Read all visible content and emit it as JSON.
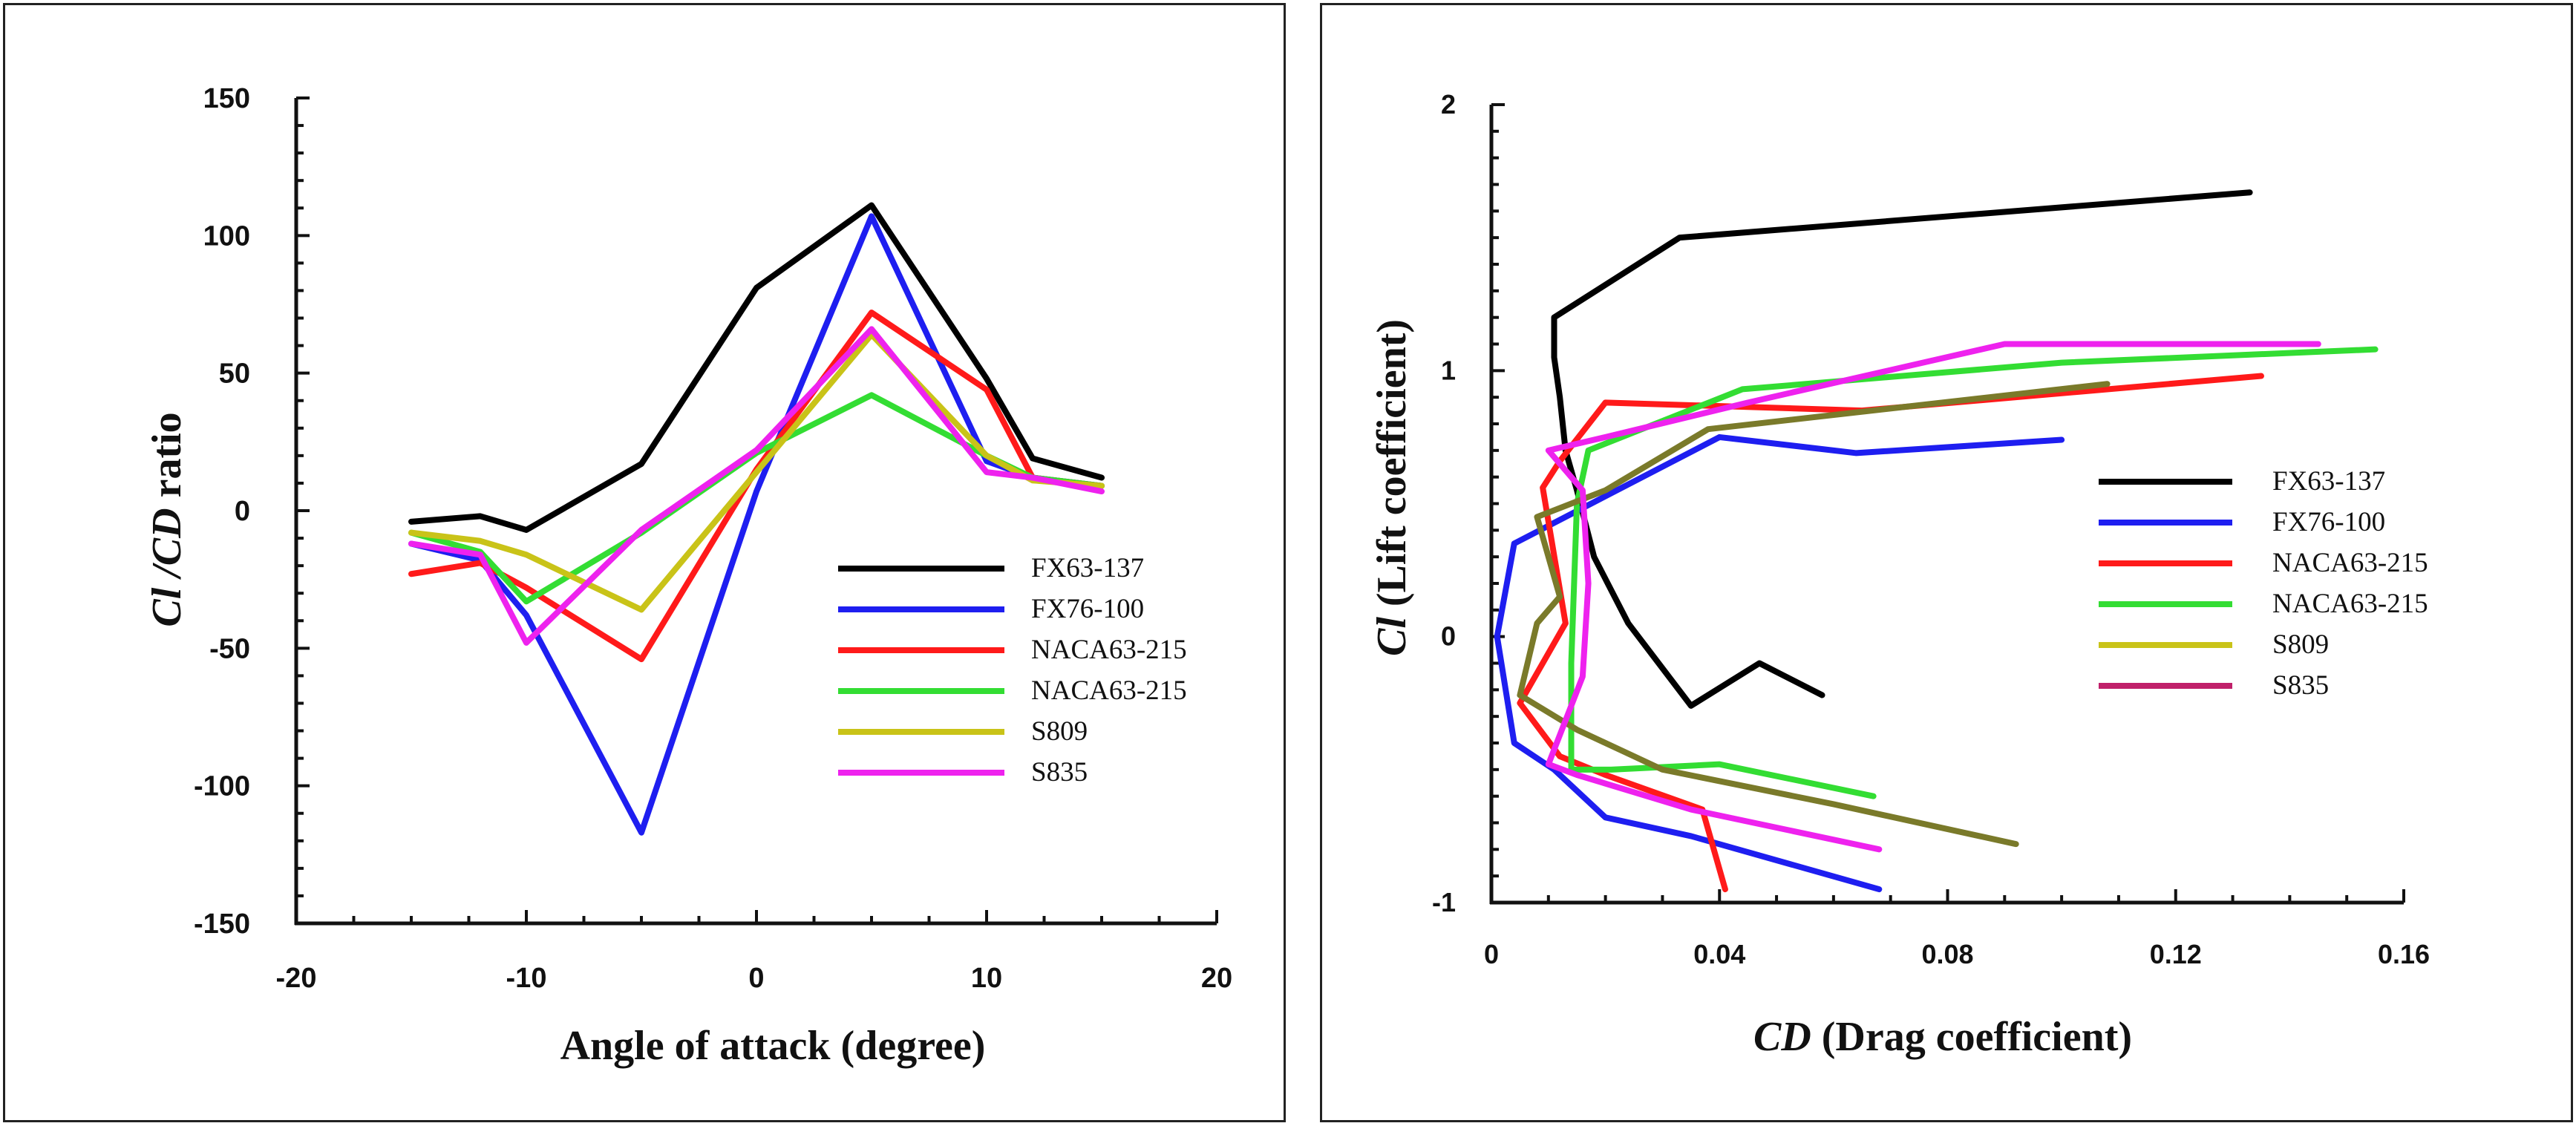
{
  "chart_data": [
    {
      "type": "line",
      "title": "",
      "xlabel": "Angle of attack (degree)",
      "ylabel_italic": "Cl /CD",
      "ylabel_rest": " ratio",
      "xlim": [
        -20,
        20
      ],
      "ylim": [
        -150,
        150
      ],
      "xticks": [
        -20,
        -10,
        0,
        10,
        20
      ],
      "yticks": [
        -150,
        -100,
        -50,
        0,
        50,
        100,
        150
      ],
      "legend_position": "center-right",
      "series": [
        {
          "name": "FX63-137",
          "color": "#000000",
          "x": [
            -15,
            -12,
            -10,
            -5,
            0,
            5,
            10,
            12,
            15
          ],
          "y": [
            -4,
            -2,
            -7,
            17,
            81,
            111,
            48,
            19,
            12
          ]
        },
        {
          "name": "FX76-100",
          "color": "#1e1ef0",
          "x": [
            -15,
            -12,
            -10,
            -5,
            0,
            5,
            10,
            12,
            15
          ],
          "y": [
            -12,
            -18,
            -38,
            -117,
            7,
            107,
            18,
            12,
            9
          ]
        },
        {
          "name": "NACA63-215",
          "color": "#ff1a1a",
          "x": [
            -15,
            -12,
            -10,
            -5,
            0,
            5,
            10,
            12,
            15
          ],
          "y": [
            -23,
            -19,
            -28,
            -54,
            15,
            72,
            44,
            12,
            9
          ]
        },
        {
          "name": "NACA63-215",
          "color": "#33dd33",
          "x": [
            -15,
            -12,
            -10,
            -5,
            0,
            5,
            10,
            12,
            15
          ],
          "y": [
            -8,
            -15,
            -33,
            -8,
            21,
            42,
            20,
            12,
            9
          ]
        },
        {
          "name": "S809",
          "color": "#c9c318",
          "x": [
            -15,
            -12,
            -10,
            -5,
            0,
            5,
            10,
            12,
            15
          ],
          "y": [
            -8,
            -11,
            -16,
            -36,
            14,
            64,
            20,
            11,
            9
          ]
        },
        {
          "name": "S835",
          "color": "#ee22ee",
          "x": [
            -15,
            -12,
            -10,
            -5,
            0,
            5,
            10,
            12,
            15
          ],
          "y": [
            -12,
            -16,
            -48,
            -7,
            22,
            66,
            14,
            12,
            7
          ]
        }
      ]
    },
    {
      "type": "line",
      "title": "",
      "xlabel_italic": "CD",
      "xlabel_rest": " (Drag coefficient)",
      "ylabel_italic": "Cl",
      "ylabel_rest": " (Lift coefficient)",
      "xlim": [
        0,
        0.16
      ],
      "ylim": [
        -1,
        2
      ],
      "xticks": [
        "0",
        "0.04",
        "0.08",
        "0.12",
        "0.16"
      ],
      "yticks": [
        "-1",
        "0",
        "1",
        "2"
      ],
      "legend_position": "center-right",
      "series": [
        {
          "name": "FX63-137",
          "color": "#000000",
          "x": [
            0.058,
            0.047,
            0.035,
            0.024,
            0.018,
            0.015,
            0.013,
            0.012,
            0.011,
            0.011,
            0.033,
            0.133
          ],
          "y": [
            -0.22,
            -0.1,
            -0.26,
            0.05,
            0.3,
            0.55,
            0.7,
            0.9,
            1.05,
            1.2,
            1.5,
            1.67
          ]
        },
        {
          "name": "FX76-100",
          "color": "#1e1ef0",
          "x": [
            0.068,
            0.035,
            0.02,
            0.011,
            0.004,
            0.001,
            0.004,
            0.013,
            0.04,
            0.064,
            0.1
          ],
          "y": [
            -0.95,
            -0.75,
            -0.68,
            -0.5,
            -0.4,
            0.0,
            0.35,
            0.45,
            0.75,
            0.69,
            0.74
          ]
        },
        {
          "name": "NACA63-215",
          "color": "#ff1a1a",
          "x": [
            0.041,
            0.037,
            0.02,
            0.012,
            0.005,
            0.009,
            0.013,
            0.009,
            0.012,
            0.02,
            0.065,
            0.135
          ],
          "y": [
            -0.95,
            -0.65,
            -0.52,
            -0.45,
            -0.25,
            -0.1,
            0.05,
            0.56,
            0.66,
            0.88,
            0.85,
            0.98
          ]
        },
        {
          "name": "NACA63-215",
          "color": "#33dd33",
          "x": [
            0.067,
            0.04,
            0.021,
            0.014,
            0.014,
            0.015,
            0.017,
            0.044,
            0.1,
            0.155
          ],
          "y": [
            -0.6,
            -0.48,
            -0.5,
            -0.5,
            -0.1,
            0.5,
            0.7,
            0.93,
            1.03,
            1.08
          ]
        },
        {
          "name": "S809",
          "color": "#7a7a2a",
          "x": [
            0.092,
            0.06,
            0.03,
            0.015,
            0.005,
            0.008,
            0.012,
            0.008,
            0.02,
            0.038,
            0.108
          ],
          "y": [
            -0.78,
            -0.63,
            -0.5,
            -0.35,
            -0.22,
            0.05,
            0.15,
            0.45,
            0.55,
            0.78,
            0.95
          ]
        },
        {
          "name": "S835",
          "color": "#ee22ee",
          "x": [
            0.068,
            0.035,
            0.015,
            0.01,
            0.016,
            0.017,
            0.016,
            0.01,
            0.02,
            0.045,
            0.09,
            0.145
          ],
          "y": [
            -0.8,
            -0.65,
            -0.52,
            -0.48,
            -0.15,
            0.2,
            0.55,
            0.7,
            0.75,
            0.88,
            1.1,
            1.1
          ]
        }
      ],
      "legend": [
        {
          "name": "FX63-137",
          "color": "#000000"
        },
        {
          "name": "FX76-100",
          "color": "#1e1ef0"
        },
        {
          "name": "NACA63-215",
          "color": "#ff1a1a"
        },
        {
          "name": "NACA63-215",
          "color": "#33dd33"
        },
        {
          "name": "S809",
          "color": "#c9c318"
        },
        {
          "name": "S835",
          "color": "#c0206a"
        }
      ]
    }
  ]
}
